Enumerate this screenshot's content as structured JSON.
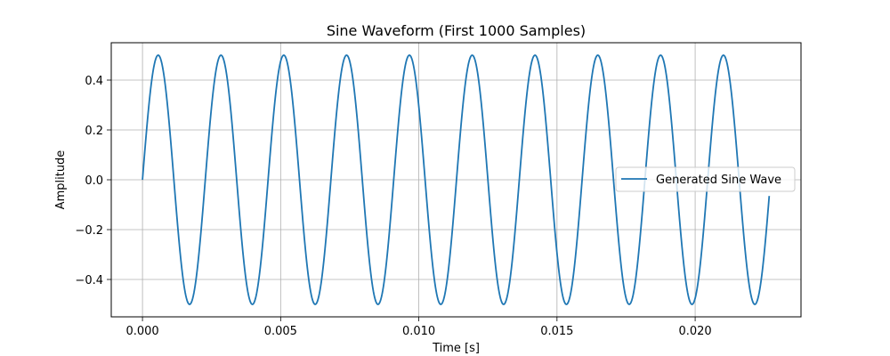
{
  "chart_data": {
    "type": "line",
    "title": "Sine Waveform (First 1000 Samples)",
    "xlabel": "Time [s]",
    "ylabel": "Amplitude",
    "xlim": [
      -0.00113,
      0.02383
    ],
    "ylim": [
      -0.55,
      0.55
    ],
    "xticks": [
      0.0,
      0.005,
      0.01,
      0.015,
      0.02
    ],
    "xtick_labels": [
      "0.000",
      "0.005",
      "0.010",
      "0.015",
      "0.020"
    ],
    "yticks": [
      -0.4,
      -0.2,
      0.0,
      0.2,
      0.4
    ],
    "ytick_labels": [
      "−0.4",
      "−0.2",
      "0.0",
      "0.2",
      "0.4"
    ],
    "grid": true,
    "legend_position": "center-right",
    "series": [
      {
        "name": "Generated Sine Wave",
        "color": "#1f77b4",
        "function": "sine",
        "amplitude": 0.5,
        "frequency_hz": 440,
        "x_start": 0.0,
        "x_end": 0.02268,
        "num_points": 1000
      }
    ]
  }
}
